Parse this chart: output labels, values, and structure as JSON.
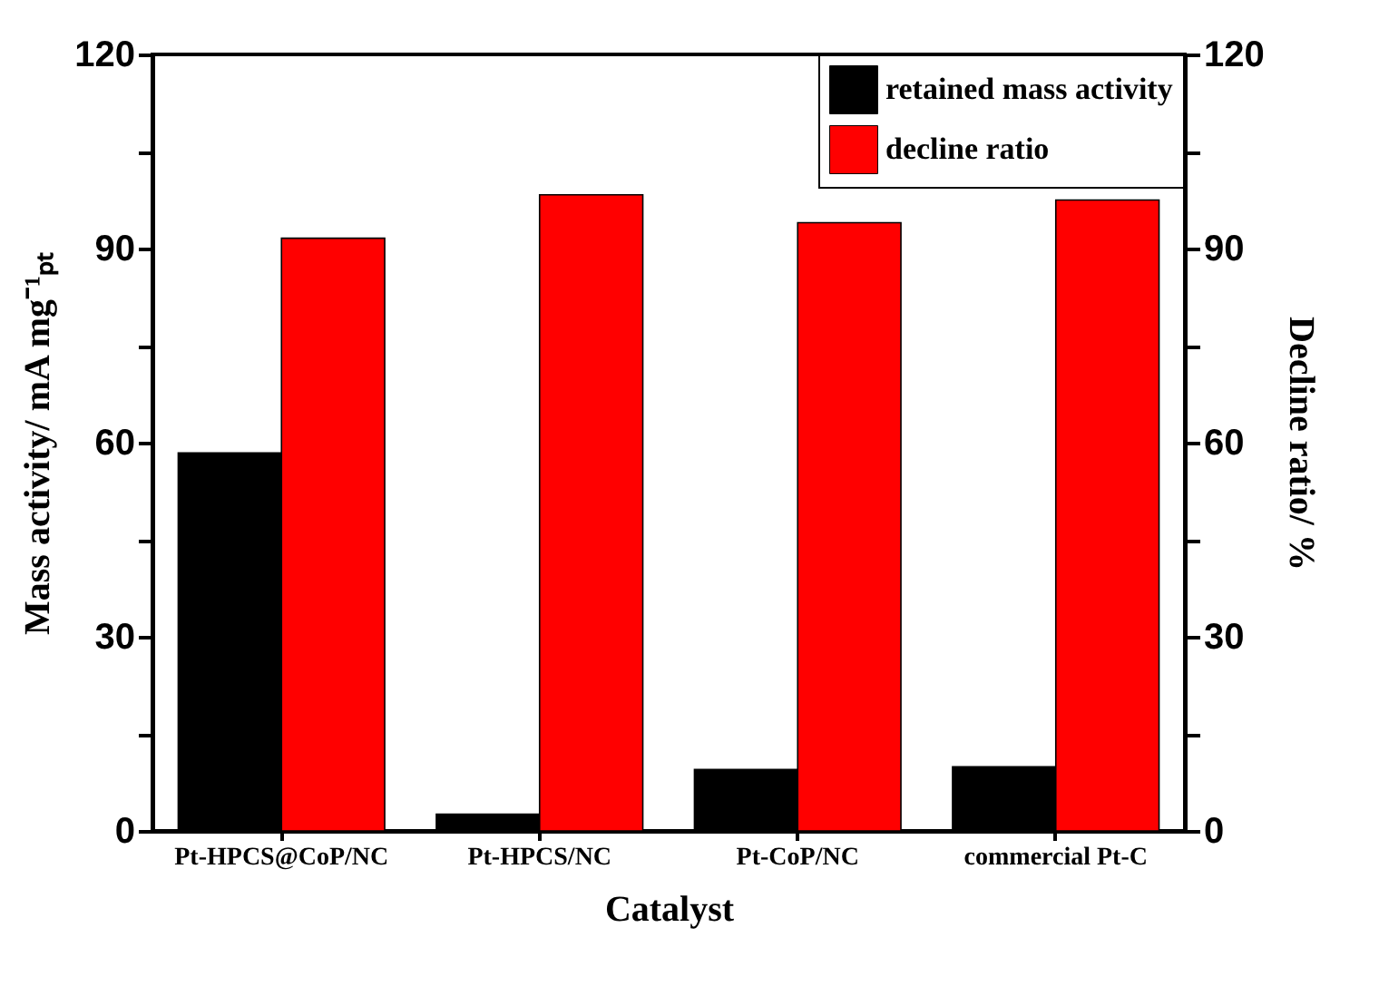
{
  "chart_data": {
    "type": "bar",
    "xlabel": "Catalyst",
    "ylabel": "Mass activity/ mA mg⁻¹ₚₜ",
    "y2label": "Decline ratio/ %",
    "categories": [
      "Pt-HPCS@CoP/NC",
      "Pt-HPCS/NC",
      "Pt-CoP/NC",
      "commercial Pt-C"
    ],
    "series": [
      {
        "name": "retained mass activity",
        "color": "#000000",
        "values": [
          58.4,
          2.6,
          9.5,
          9.9
        ]
      },
      {
        "name": "decline ratio",
        "color": "#ff0000",
        "axis": "y2",
        "values": [
          91.6,
          98.3,
          94.0,
          97.5
        ]
      }
    ],
    "ylim": [
      0,
      120
    ],
    "yticks": [
      0,
      {
        "value": 15,
        "label": null
      },
      30,
      {
        "value": 45,
        "label": null
      },
      60,
      {
        "value": 75,
        "label": null
      },
      90,
      {
        "value": 105,
        "label": null
      },
      120
    ],
    "y2lim": [
      0,
      120
    ],
    "y2ticks": [
      0,
      {
        "value": 15,
        "label": null
      },
      30,
      {
        "value": 45,
        "label": null
      },
      60,
      {
        "value": 75,
        "label": null
      },
      90,
      {
        "value": 105,
        "label": null
      },
      120
    ],
    "legend": "top right"
  }
}
